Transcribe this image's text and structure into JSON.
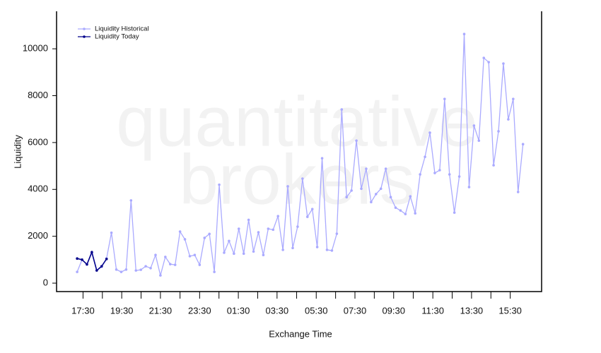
{
  "chart_data": {
    "type": "line",
    "watermark": [
      "quantitative",
      "brokers"
    ],
    "xlabel": "Exchange Time",
    "ylabel": "Liquidity",
    "categories": [
      null,
      null,
      null,
      null,
      null,
      null,
      null,
      null,
      null,
      null,
      null,
      null,
      null,
      null,
      null,
      null,
      null,
      null,
      null,
      null,
      null,
      null,
      null,
      null,
      null,
      null,
      null,
      null,
      null,
      null,
      null,
      null,
      null,
      null,
      null,
      null,
      null,
      null,
      null,
      null,
      null,
      null,
      null,
      null,
      null,
      null,
      null,
      null,
      null,
      null,
      null,
      null,
      null,
      null,
      null,
      null,
      null,
      null,
      null,
      null,
      null,
      null,
      null,
      null,
      null,
      null,
      null,
      null,
      null,
      null,
      null,
      null,
      null,
      null,
      null,
      null,
      null,
      null,
      null,
      null,
      null,
      null,
      null,
      null,
      null,
      null,
      null,
      null,
      null,
      null,
      null,
      null
    ],
    "series": [
      {
        "name": "Liquidity Historical",
        "color": "#aaaaff",
        "values": [
          480,
          1000,
          800,
          1300,
          550,
          700,
          1050,
          2150,
          580,
          480,
          580,
          3530,
          540,
          570,
          720,
          640,
          1200,
          330,
          1120,
          810,
          780,
          2200,
          1870,
          1150,
          1200,
          780,
          1930,
          2100,
          480,
          4200,
          1300,
          1800,
          1260,
          2320,
          1260,
          2700,
          1350,
          2170,
          1200,
          2320,
          2280,
          2860,
          1420,
          4130,
          1500,
          2410,
          4460,
          2830,
          3160,
          1540,
          5330,
          1420,
          1390,
          2110,
          7410,
          3670,
          3950,
          6080,
          4030,
          4880,
          3460,
          3800,
          4030,
          4880,
          3670,
          3220,
          3100,
          2950,
          3700,
          2980,
          4640,
          5390,
          6420,
          4700,
          4820,
          7860,
          4640,
          3010,
          4550,
          10630,
          4100,
          6720,
          6080,
          9610,
          9430,
          5030,
          6480,
          9370,
          6990,
          7860,
          3890,
          5930
        ]
      },
      {
        "name": "Liquidity Today",
        "color": "#00008b",
        "values": [
          1050,
          1000,
          800,
          1320,
          540,
          720,
          1030,
          null,
          null,
          null,
          null,
          null,
          null,
          null,
          null,
          null,
          null,
          null,
          null,
          null,
          null,
          null,
          null,
          null,
          null,
          null,
          null,
          null,
          null,
          null,
          null,
          null,
          null,
          null,
          null,
          null,
          null,
          null,
          null,
          null,
          null,
          null,
          null,
          null,
          null,
          null,
          null,
          null,
          null,
          null,
          null,
          null,
          null,
          null,
          null,
          null,
          null,
          null,
          null,
          null,
          null,
          null,
          null,
          null,
          null,
          null,
          null,
          null,
          null,
          null,
          null,
          null,
          null,
          null,
          null,
          null,
          null,
          null,
          null,
          null,
          null,
          null,
          null,
          null,
          null,
          null,
          null,
          null,
          null,
          null,
          null,
          null
        ]
      }
    ],
    "xlim": [
      -4.2,
      94.8
    ],
    "xticks": [
      {
        "value": 1.2,
        "label": "17:30"
      },
      {
        "value": 9.1,
        "label": "19:30"
      },
      {
        "value": 17.0,
        "label": "21:30"
      },
      {
        "value": 25.0,
        "label": "23:30"
      },
      {
        "value": 32.9,
        "label": "01:30"
      },
      {
        "value": 40.8,
        "label": "03:30"
      },
      {
        "value": 48.8,
        "label": "05:30"
      },
      {
        "value": 56.7,
        "label": "07:30"
      },
      {
        "value": 64.6,
        "label": "09:30"
      },
      {
        "value": 72.6,
        "label": "11:30"
      },
      {
        "value": 80.5,
        "label": "13:30"
      },
      {
        "value": 88.4,
        "label": "15:30"
      }
    ],
    "ylim": [
      -360,
      11600
    ],
    "yticks": [
      0,
      2000,
      4000,
      6000,
      8000,
      10000
    ],
    "legend": "top-left"
  }
}
